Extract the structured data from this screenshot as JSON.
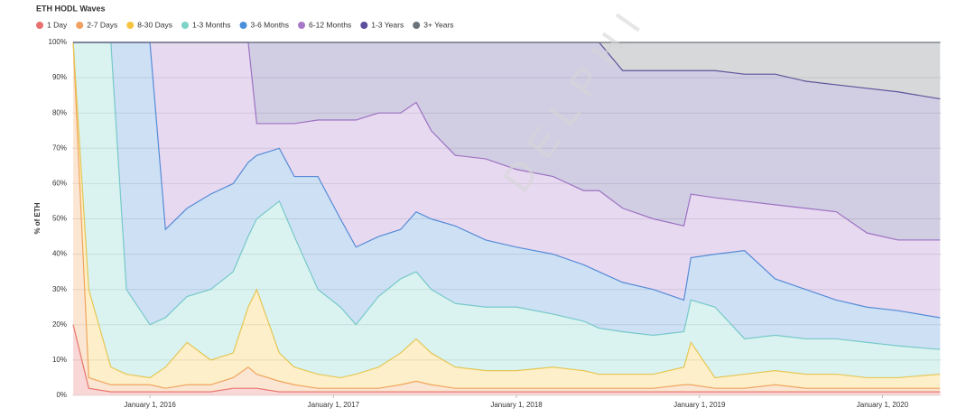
{
  "chart_data": {
    "type": "stacked-area",
    "title": "ETH HODL Waves",
    "y_label": "% of ETH",
    "watermark": "DELPHI",
    "x": [
      "2015-08-01",
      "2015-09-01",
      "2015-10-15",
      "2015-11-15",
      "2016-01-01",
      "2016-02-01",
      "2016-03-15",
      "2016-05-01",
      "2016-06-15",
      "2016-07-15",
      "2016-08-01",
      "2016-09-15",
      "2016-10-15",
      "2016-12-01",
      "2017-01-15",
      "2017-02-15",
      "2017-04-01",
      "2017-05-15",
      "2017-06-15",
      "2017-07-15",
      "2017-09-01",
      "2017-11-01",
      "2018-01-01",
      "2018-03-15",
      "2018-05-15",
      "2018-06-15",
      "2018-08-01",
      "2018-10-01",
      "2018-12-01",
      "2018-12-15",
      "2019-02-01",
      "2019-04-01",
      "2019-06-01",
      "2019-08-01",
      "2019-10-01",
      "2019-12-01",
      "2020-02-01",
      "2020-04-25"
    ],
    "xlim": [
      "2015-07-30",
      "2020-04-28"
    ],
    "xticks": [
      {
        "value": "2016-01-01",
        "label": "January 1, 2016"
      },
      {
        "value": "2017-01-01",
        "label": "January 1, 2017"
      },
      {
        "value": "2018-01-01",
        "label": "January 1, 2018"
      },
      {
        "value": "2019-01-01",
        "label": "January 1, 2019"
      },
      {
        "value": "2020-01-01",
        "label": "January 1, 2020"
      }
    ],
    "ylim": [
      0,
      100
    ],
    "yticks": [
      {
        "value": 0,
        "label": "0%"
      },
      {
        "value": 10,
        "label": "10%"
      },
      {
        "value": 20,
        "label": "20%"
      },
      {
        "value": 30,
        "label": "30%"
      },
      {
        "value": 40,
        "label": "40%"
      },
      {
        "value": 50,
        "label": "50%"
      },
      {
        "value": 60,
        "label": "60%"
      },
      {
        "value": 70,
        "label": "70%"
      },
      {
        "value": 80,
        "label": "80%"
      },
      {
        "value": 90,
        "label": "90%"
      },
      {
        "value": 100,
        "label": "100%"
      }
    ],
    "grid": true,
    "legend": "top-left",
    "series": [
      {
        "name": "1 Day",
        "color": "#e8716f",
        "values": [
          20,
          2,
          1,
          1,
          1,
          1,
          1,
          1,
          2,
          2,
          2,
          1,
          1,
          1,
          1,
          1,
          1,
          1,
          1,
          1,
          1,
          1,
          1,
          1,
          1,
          1,
          1,
          1,
          1,
          1,
          1,
          1,
          1,
          1,
          1,
          1,
          1,
          1
        ]
      },
      {
        "name": "2-7 Days",
        "color": "#f0a060",
        "values": [
          80,
          3,
          2,
          2,
          2,
          1,
          2,
          2,
          3,
          6,
          4,
          3,
          2,
          1,
          1,
          1,
          1,
          2,
          3,
          2,
          1,
          1,
          1,
          1,
          1,
          1,
          1,
          1,
          2,
          2,
          1,
          1,
          2,
          1,
          1,
          1,
          1,
          1
        ]
      },
      {
        "name": "8-30 Days",
        "color": "#f5c542",
        "values": [
          0,
          25,
          5,
          3,
          2,
          6,
          12,
          7,
          7,
          17,
          24,
          8,
          5,
          4,
          3,
          4,
          6,
          9,
          12,
          9,
          6,
          5,
          5,
          6,
          5,
          4,
          4,
          4,
          5,
          12,
          3,
          4,
          4,
          4,
          4,
          3,
          3,
          4
        ]
      },
      {
        "name": "1-3 Months",
        "color": "#7fd3c8",
        "values": [
          0,
          70,
          92,
          24,
          15,
          14,
          13,
          20,
          23,
          20,
          20,
          43,
          37,
          24,
          20,
          14,
          20,
          21,
          19,
          18,
          18,
          18,
          18,
          15,
          14,
          13,
          12,
          11,
          10,
          12,
          20,
          10,
          10,
          10,
          10,
          10,
          9,
          7
        ]
      },
      {
        "name": "3-6 Months",
        "color": "#4a8fd9",
        "values": [
          0,
          0,
          0,
          70,
          80,
          25,
          25,
          27,
          25,
          21,
          18,
          15,
          17,
          32,
          25,
          22,
          17,
          14,
          17,
          20,
          22,
          19,
          17,
          17,
          16,
          16,
          14,
          13,
          9,
          12,
          15,
          25,
          16,
          14,
          11,
          10,
          10,
          9
        ]
      },
      {
        "name": "6-12 Months",
        "color": "#a878c8",
        "values": [
          0,
          0,
          0,
          0,
          0,
          53,
          47,
          43,
          40,
          34,
          9,
          7,
          15,
          16,
          28,
          36,
          35,
          33,
          31,
          25,
          20,
          23,
          22,
          22,
          21,
          23,
          21,
          20,
          21,
          18,
          16,
          14,
          21,
          23,
          25,
          21,
          20,
          22
        ]
      },
      {
        "name": "1-3 Years",
        "color": "#5b4f9e",
        "values": [
          0,
          0,
          0,
          0,
          0,
          0,
          0,
          0,
          0,
          0,
          23,
          23,
          23,
          22,
          22,
          22,
          20,
          20,
          17,
          25,
          32,
          33,
          36,
          38,
          42,
          42,
          39,
          42,
          44,
          35,
          36,
          36,
          37,
          36,
          36,
          41,
          42,
          40
        ]
      },
      {
        "name": "3+ Years",
        "color": "#6b737a",
        "values": [
          0,
          0,
          0,
          0,
          0,
          0,
          0,
          0,
          0,
          0,
          0,
          0,
          0,
          0,
          0,
          0,
          0,
          0,
          0,
          0,
          0,
          0,
          0,
          0,
          0,
          0,
          8,
          8,
          8,
          8,
          8,
          9,
          9,
          11,
          12,
          13,
          14,
          16
        ]
      }
    ]
  }
}
